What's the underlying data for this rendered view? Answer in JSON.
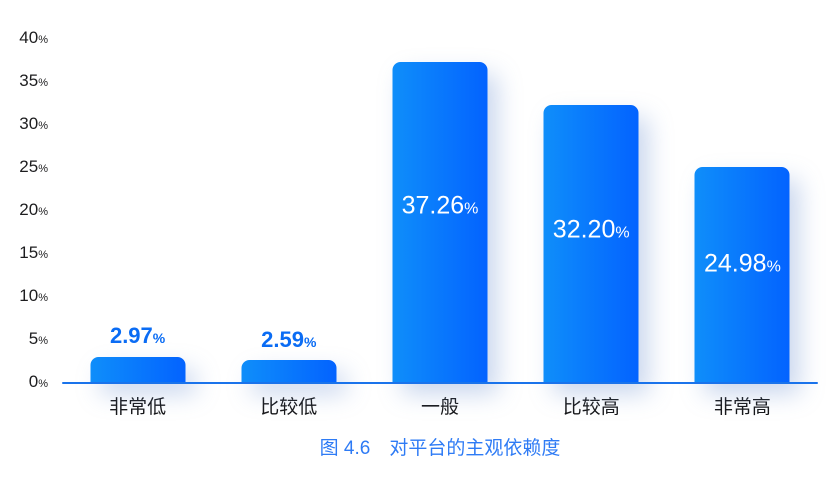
{
  "figure": {
    "caption": "图 4.6　对平台的主观依赖度"
  },
  "chart_data": {
    "type": "bar",
    "categories": [
      "非常低",
      "比较低",
      "一般",
      "比较高",
      "非常高"
    ],
    "values": [
      2.97,
      2.59,
      37.26,
      32.2,
      24.98
    ],
    "value_decimals": 2,
    "value_suffix": "%",
    "title": "图 4.6　对平台的主观依赖度",
    "xlabel": "",
    "ylabel": "",
    "ylim": [
      0,
      40
    ],
    "ytick_step": 5,
    "yticks": [
      40,
      35,
      30,
      25,
      20,
      15,
      10,
      5,
      0
    ],
    "ytick_suffix": "%",
    "grid": false,
    "legend": "none",
    "label_placement_rule": "inside bar when bar is tall, blue label above bar when short",
    "colors": {
      "bar_gradient_start": "#0f8efa",
      "bar_gradient_end": "#0363ff",
      "axis_line": "#1a73eb",
      "outside_label": "#0a6cf4",
      "inside_label": "#ffffff",
      "tick_text": "#1d1d1f",
      "category_text": "#161618",
      "caption_text": "#2e7bf5"
    }
  }
}
